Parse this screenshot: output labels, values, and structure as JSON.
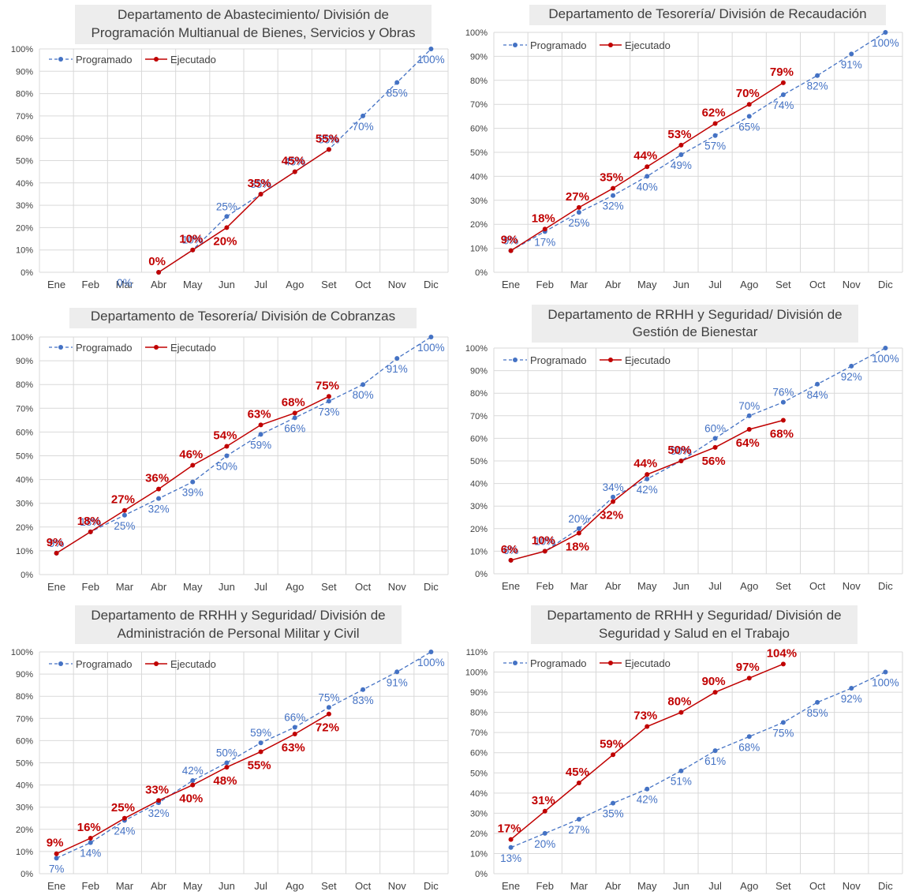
{
  "colors": {
    "programado": "#4472c4",
    "ejecutado": "#c00000",
    "title_bg": "#ededed",
    "grid": "#d9d9d9"
  },
  "chart_data": [
    {
      "type": "line",
      "title": [
        "Departamento de Abastecimiento/ División de",
        "Programación Multianual de Bienes, Servicios y Obras"
      ],
      "categories": [
        "Ene",
        "Feb",
        "Mar",
        "Abr",
        "May",
        "Jun",
        "Jul",
        "Ago",
        "Set",
        "Oct",
        "Nov",
        "Dic"
      ],
      "ylim": [
        0,
        100
      ],
      "yticks": [
        "0%",
        "10%",
        "20%",
        "30%",
        "40%",
        "50%",
        "60%",
        "70%",
        "80%",
        "90%",
        "100%"
      ],
      "legend": "top-left",
      "series": [
        {
          "name": "Programado",
          "style": "dashed",
          "values": [
            null,
            null,
            null,
            0,
            10,
            25,
            35,
            45,
            55,
            70,
            85,
            100
          ],
          "labels": [
            null,
            null,
            "0%",
            null,
            "10%",
            "25%",
            "35%",
            "45%",
            "55%",
            "70%",
            "85%",
            "100%"
          ]
        },
        {
          "name": "Ejecutado",
          "style": "solid",
          "values": [
            null,
            null,
            null,
            0,
            10,
            20,
            35,
            45,
            55,
            null,
            null,
            null
          ],
          "labels": [
            null,
            null,
            null,
            "0%",
            "10%",
            "20%",
            "35%",
            "45%",
            "55%",
            null,
            null,
            null
          ]
        }
      ]
    },
    {
      "type": "line",
      "title": [
        "Departamento de Tesorería/ División de Recaudación"
      ],
      "categories": [
        "Ene",
        "Feb",
        "Mar",
        "Abr",
        "May",
        "Jun",
        "Jul",
        "Ago",
        "Set",
        "Oct",
        "Nov",
        "Dic"
      ],
      "ylim": [
        0,
        100
      ],
      "yticks": [
        "0%",
        "10%",
        "20%",
        "30%",
        "40%",
        "50%",
        "60%",
        "70%",
        "80%",
        "90%",
        "100%"
      ],
      "legend": "top-left",
      "series": [
        {
          "name": "Programado",
          "style": "dashed",
          "values": [
            9,
            17,
            25,
            32,
            40,
            49,
            57,
            65,
            74,
            82,
            91,
            100
          ],
          "labels": [
            "9%",
            "17%",
            "25%",
            "32%",
            "40%",
            "49%",
            "57%",
            "65%",
            "74%",
            "82%",
            "91%",
            "100%"
          ]
        },
        {
          "name": "Ejecutado",
          "style": "solid",
          "values": [
            9,
            18,
            27,
            35,
            44,
            53,
            62,
            70,
            79,
            null,
            null,
            null
          ],
          "labels": [
            "9%",
            "18%",
            "27%",
            "35%",
            "44%",
            "53%",
            "62%",
            "70%",
            "79%",
            null,
            null,
            null
          ]
        }
      ]
    },
    {
      "type": "line",
      "title": [
        "Departamento de Tesorería/ División de Cobranzas"
      ],
      "categories": [
        "Ene",
        "Feb",
        "Mar",
        "Abr",
        "May",
        "Jun",
        "Jul",
        "Ago",
        "Set",
        "Oct",
        "Nov",
        "Dic"
      ],
      "ylim": [
        0,
        100
      ],
      "yticks": [
        "0%",
        "10%",
        "20%",
        "30%",
        "40%",
        "50%",
        "60%",
        "70%",
        "80%",
        "90%",
        "100%"
      ],
      "legend": "top-left",
      "series": [
        {
          "name": "Programado",
          "style": "dashed",
          "values": [
            9,
            18,
            25,
            32,
            39,
            50,
            59,
            66,
            73,
            80,
            91,
            100
          ],
          "labels": [
            "9%",
            "18%",
            "25%",
            "32%",
            "39%",
            "50%",
            "59%",
            "66%",
            "73%",
            "80%",
            "91%",
            "100%"
          ]
        },
        {
          "name": "Ejecutado",
          "style": "solid",
          "values": [
            9,
            18,
            27,
            36,
            46,
            54,
            63,
            68,
            75,
            null,
            null,
            null
          ],
          "labels": [
            "9%",
            "18%",
            "27%",
            "36%",
            "46%",
            "54%",
            "63%",
            "68%",
            "75%",
            null,
            null,
            null
          ]
        }
      ]
    },
    {
      "type": "line",
      "title": [
        "Departamento de RRHH y Seguridad/ División de",
        "Gestión de Bienestar"
      ],
      "categories": [
        "Ene",
        "Feb",
        "Mar",
        "Abr",
        "May",
        "Jun",
        "Jul",
        "Ago",
        "Set",
        "Oct",
        "Nov",
        "Dic"
      ],
      "ylim": [
        0,
        100
      ],
      "yticks": [
        "0%",
        "10%",
        "20%",
        "30%",
        "40%",
        "50%",
        "60%",
        "70%",
        "80%",
        "90%",
        "100%"
      ],
      "legend": "top-left",
      "series": [
        {
          "name": "Programado",
          "style": "dashed",
          "values": [
            6,
            10,
            20,
            34,
            42,
            50,
            60,
            70,
            76,
            84,
            92,
            100
          ],
          "labels": [
            "6%",
            "10%",
            "20%",
            "34%",
            "42%",
            "50%",
            "60%",
            "70%",
            "76%",
            "84%",
            "92%",
            "100%"
          ]
        },
        {
          "name": "Ejecutado",
          "style": "solid",
          "values": [
            6,
            10,
            18,
            32,
            44,
            50,
            56,
            64,
            68,
            null,
            null,
            null
          ],
          "labels": [
            "6%",
            "10%",
            "18%",
            "32%",
            "44%",
            "50%",
            "56%",
            "64%",
            "68%",
            null,
            null,
            null
          ]
        }
      ]
    },
    {
      "type": "line",
      "title": [
        "Departamento de RRHH y Seguridad/ División de",
        "Administración de Personal Militar y Civil"
      ],
      "categories": [
        "Ene",
        "Feb",
        "Mar",
        "Abr",
        "May",
        "Jun",
        "Jul",
        "Ago",
        "Set",
        "Oct",
        "Nov",
        "Dic"
      ],
      "ylim": [
        0,
        100
      ],
      "yticks": [
        "0%",
        "10%",
        "20%",
        "30%",
        "40%",
        "50%",
        "60%",
        "70%",
        "80%",
        "90%",
        "100%"
      ],
      "legend": "top-left",
      "series": [
        {
          "name": "Programado",
          "style": "dashed",
          "values": [
            7,
            14,
            24,
            32,
            42,
            50,
            59,
            66,
            75,
            83,
            91,
            100
          ],
          "labels": [
            "7%",
            "14%",
            "24%",
            "32%",
            "42%",
            "50%",
            "59%",
            "66%",
            "75%",
            "83%",
            "91%",
            "100%"
          ]
        },
        {
          "name": "Ejecutado",
          "style": "solid",
          "values": [
            9,
            16,
            25,
            33,
            40,
            48,
            55,
            63,
            72,
            null,
            null,
            null
          ],
          "labels": [
            "9%",
            "16%",
            "25%",
            "33%",
            "40%",
            "48%",
            "55%",
            "63%",
            "72%",
            null,
            null,
            null
          ]
        }
      ]
    },
    {
      "type": "line",
      "title": [
        "Departamento de RRHH y Seguridad/ División de",
        "Seguridad y Salud en el Trabajo"
      ],
      "categories": [
        "Ene",
        "Feb",
        "Mar",
        "Abr",
        "May",
        "Jun",
        "Jul",
        "Ago",
        "Set",
        "Oct",
        "Nov",
        "Dic"
      ],
      "ylim": [
        0,
        110
      ],
      "yticks": [
        "0%",
        "10%",
        "20%",
        "30%",
        "40%",
        "50%",
        "60%",
        "70%",
        "80%",
        "90%",
        "100%",
        "110%"
      ],
      "legend": "top-left",
      "series": [
        {
          "name": "Programado",
          "style": "dashed",
          "values": [
            13,
            20,
            27,
            35,
            42,
            51,
            61,
            68,
            75,
            85,
            92,
            100
          ],
          "labels": [
            "13%",
            "20%",
            "27%",
            "35%",
            "42%",
            "51%",
            "61%",
            "68%",
            "75%",
            "85%",
            "92%",
            "100%"
          ]
        },
        {
          "name": "Ejecutado",
          "style": "solid",
          "values": [
            17,
            31,
            45,
            59,
            73,
            80,
            90,
            97,
            104,
            null,
            null,
            null
          ],
          "labels": [
            "17%",
            "31%",
            "45%",
            "59%",
            "73%",
            "80%",
            "90%",
            "97%",
            "104%",
            null,
            null,
            null
          ]
        }
      ]
    }
  ]
}
